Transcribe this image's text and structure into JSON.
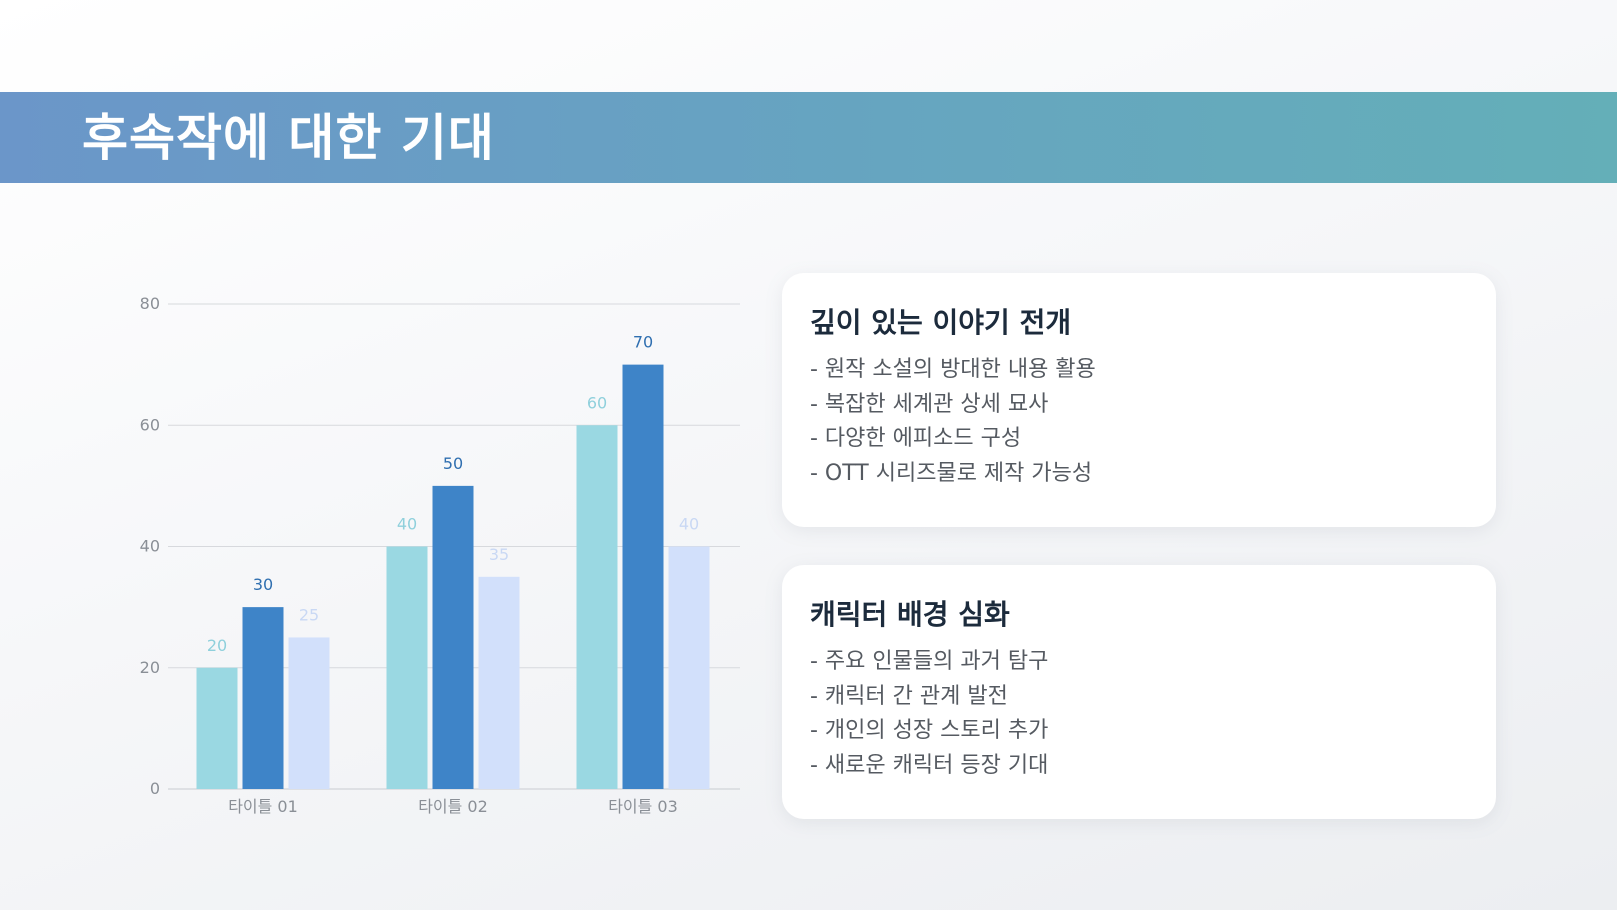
{
  "header": {
    "title": "후속작에 대한 기대"
  },
  "chart_data": {
    "type": "bar",
    "categories": [
      "타이틀 01",
      "타이틀 02",
      "타이틀 03"
    ],
    "series": [
      {
        "values": [
          20,
          40,
          60
        ],
        "color": "#9ad8e2",
        "label_color": "#8fd0dc"
      },
      {
        "values": [
          30,
          50,
          70
        ],
        "color": "#3e84c8",
        "label_color": "#2f6fb0"
      },
      {
        "values": [
          25,
          35,
          40
        ],
        "color": "#d2e0fb",
        "label_color": "#c9d8f4"
      }
    ],
    "y_ticks": [
      0,
      20,
      40,
      60,
      80
    ],
    "ylim": [
      0,
      80
    ],
    "grid": true,
    "title": "",
    "xlabel": "",
    "ylabel": ""
  },
  "cards": [
    {
      "title": "깊이 있는 이야기 전개",
      "items": [
        "- 원작 소설의 방대한 내용 활용",
        "- 복잡한 세계관 상세 묘사",
        "- 다양한 에피소드 구성",
        "- OTT 시리즈물로 제작 가능성"
      ]
    },
    {
      "title": "캐릭터 배경 심화",
      "items": [
        "- 주요 인물들의 과거 탐구",
        "- 캐릭터 간 관계 발전",
        "- 개인의 성장 스토리 추가",
        "- 새로운 캐릭터 등장 기대"
      ]
    }
  ]
}
